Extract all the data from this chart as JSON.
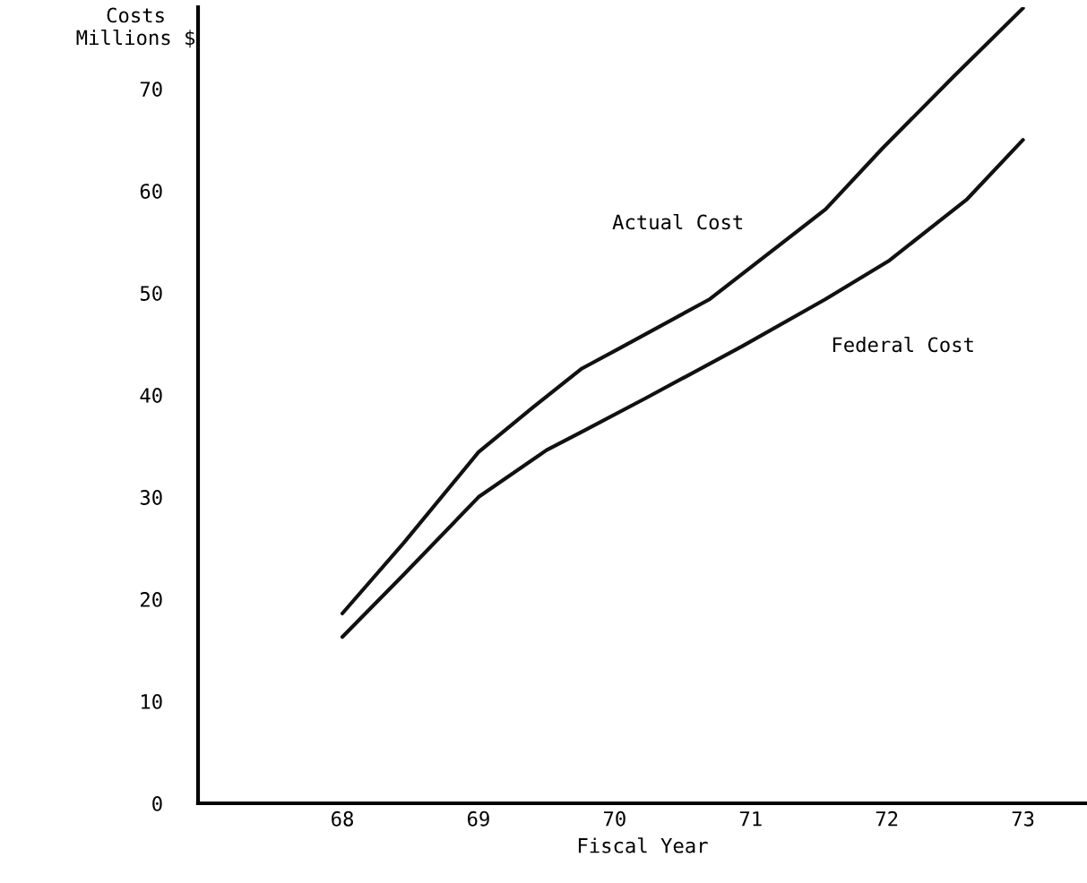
{
  "chart_data": {
    "type": "line",
    "xlabel": "Fiscal Year",
    "ylabel": "Costs\nMillions $",
    "series": [
      {
        "color": "#111111",
        "x": [
          68,
          68.45,
          69.0,
          69.4,
          69.76,
          70.04,
          70.7,
          71.55,
          71.97,
          72.49,
          73.0
        ],
        "values": [
          18.6,
          25.5,
          34.4,
          38.8,
          42.6,
          44.6,
          49.4,
          58.2,
          64.2,
          71.2,
          77.9
        ]
      },
      {
        "color": "#111111",
        "x": [
          68,
          68.45,
          69.0,
          69.5,
          69.76,
          70.23,
          70.94,
          71.55,
          72.02,
          72.59,
          73.0
        ],
        "values": [
          16.3,
          22.4,
          30.0,
          34.6,
          36.4,
          39.7,
          44.8,
          49.4,
          53.2,
          59.2,
          65.0
        ]
      }
    ],
    "annotations": [
      "Actual Cost",
      "Federal Cost"
    ],
    "xlim": [
      66.94,
      73.47
    ],
    "ylim": [
      0,
      78
    ],
    "xticks": [
      68,
      69,
      70,
      71,
      72,
      73
    ],
    "yticks": [
      0,
      10,
      20,
      30,
      40,
      50,
      60,
      70
    ],
    "grid": false,
    "legend": false,
    "marker": "none",
    "line_style": "solid"
  }
}
